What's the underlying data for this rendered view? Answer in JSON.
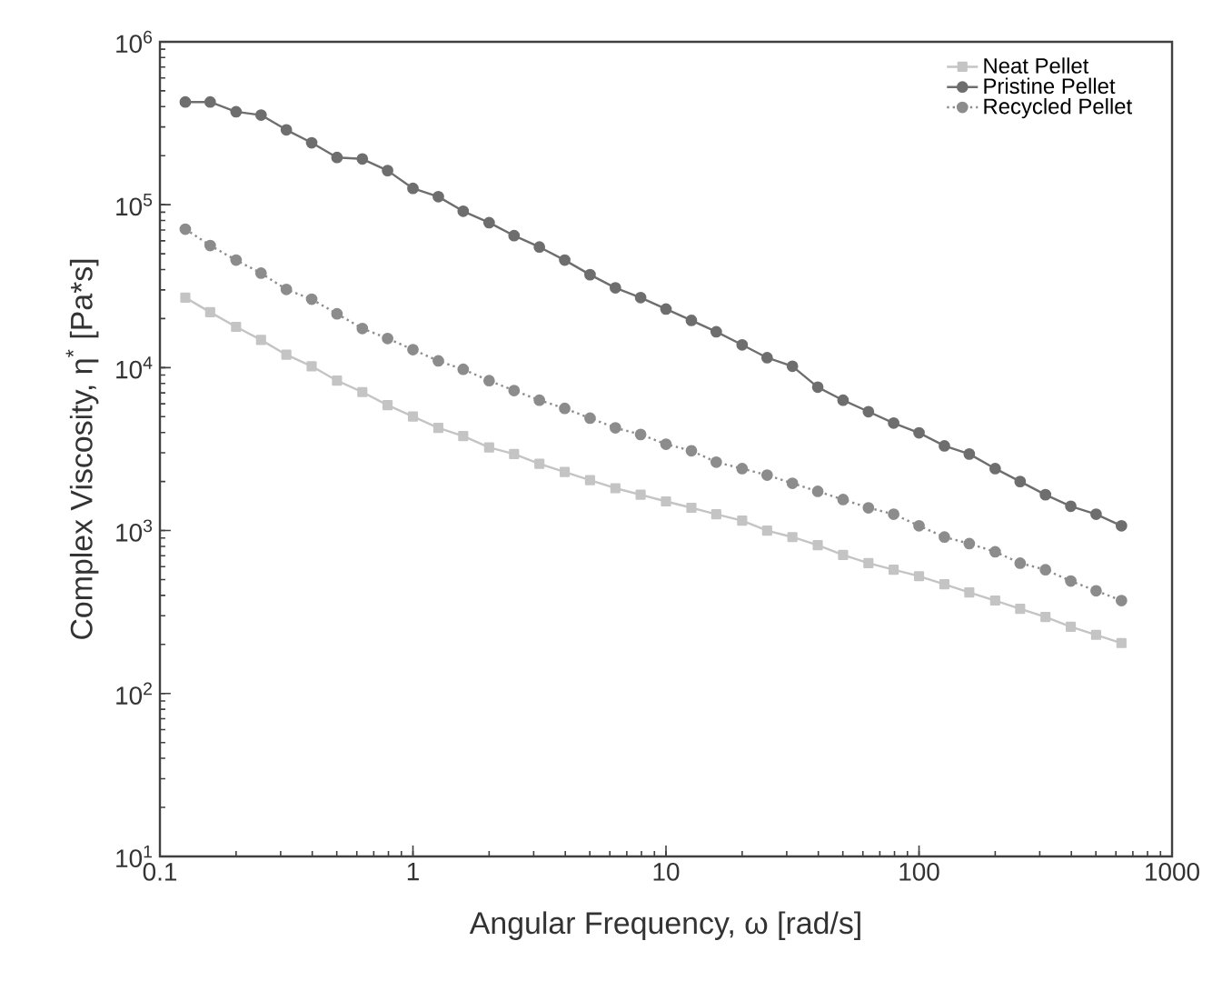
{
  "chart_data": {
    "type": "line",
    "xlabel": "Angular Frequency, ω [rad/s]",
    "ylabel": "Complex Viscosity, η$^{*}$ [Pa*s]",
    "log": "xy",
    "xlim": [
      0.1,
      1000
    ],
    "ylim": [
      10,
      1000000
    ],
    "xticks": [
      0.1,
      1,
      10,
      100,
      1000
    ],
    "yticks": [
      {
        "value": 10,
        "label": "10$^{1}$"
      },
      {
        "value": 100,
        "label": "10$^{2}$"
      },
      {
        "value": 1000,
        "label": "10$^{3}$"
      },
      {
        "value": 10000,
        "label": "10$^{4}$"
      },
      {
        "value": 100000,
        "label": "10$^{5}$"
      },
      {
        "value": 1000000,
        "label": "10$^{6}$"
      }
    ],
    "grid": false,
    "legend": "top right",
    "x": [
      0.126,
      0.158,
      0.2,
      0.251,
      0.316,
      0.398,
      0.501,
      0.631,
      0.794,
      1,
      1.26,
      1.58,
      2,
      2.51,
      3.16,
      3.98,
      5.01,
      6.31,
      7.94,
      10,
      12.6,
      15.8,
      20,
      25.1,
      31.6,
      39.8,
      50.1,
      63.1,
      79.4,
      100,
      126,
      158,
      200,
      251,
      316,
      398,
      501,
      631
    ],
    "series": [
      {
        "name": "Neat Pellet",
        "color": "#c4c4c4",
        "marker": "square",
        "line_style": "solid",
        "values": [
          26900,
          21900,
          17800,
          14800,
          12000,
          10200,
          8320,
          7080,
          5890,
          5010,
          4270,
          3800,
          3240,
          2950,
          2570,
          2290,
          2040,
          1820,
          1660,
          1510,
          1380,
          1260,
          1150,
          1000,
          912,
          813,
          708,
          631,
          575,
          525,
          468,
          417,
          372,
          331,
          295,
          257,
          229,
          204
        ]
      },
      {
        "name": "Pristine Pellet",
        "color": "#6e6e6e",
        "marker": "circle",
        "line_style": "solid",
        "values": [
          427000,
          427000,
          372000,
          355000,
          288000,
          240000,
          195000,
          191000,
          162000,
          126000,
          112000,
          91200,
          77600,
          64600,
          55000,
          45700,
          37200,
          30900,
          26900,
          22900,
          19500,
          16600,
          13800,
          11500,
          10200,
          7590,
          6310,
          5370,
          4570,
          3980,
          3310,
          2950,
          2400,
          2000,
          1660,
          1410,
          1260,
          1070
        ]
      },
      {
        "name": "Recycled Pellet",
        "color": "#8c8c8c",
        "marker": "circle",
        "line_style": "dotted",
        "values": [
          70800,
          56200,
          45700,
          38000,
          30200,
          26300,
          21400,
          17400,
          15100,
          12900,
          11000,
          9770,
          8320,
          7240,
          6310,
          5620,
          4900,
          4270,
          3890,
          3390,
          3090,
          2630,
          2400,
          2190,
          1950,
          1740,
          1550,
          1380,
          1260,
          1070,
          912,
          832,
          741,
          631,
          575,
          490,
          427,
          372
        ]
      }
    ]
  }
}
